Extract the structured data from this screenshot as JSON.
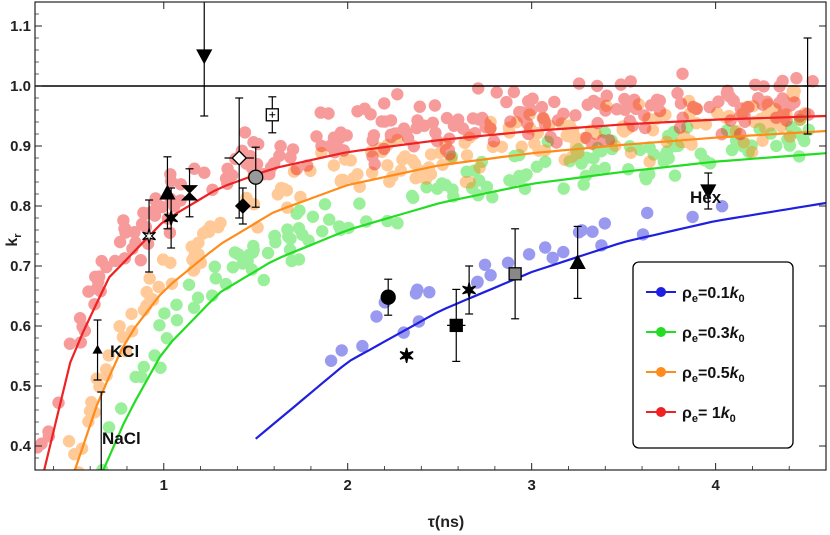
{
  "chart_data": {
    "type": "scatter",
    "title": "",
    "xlabel": "τ(ns)",
    "ylabel": "kr",
    "xlim": [
      0.3,
      4.6
    ],
    "ylim": [
      0.36,
      1.14
    ],
    "xticks": [
      1,
      2,
      3,
      4
    ],
    "yticks": [
      0.4,
      0.5,
      0.6,
      0.7,
      0.8,
      0.9,
      1.0,
      1.1
    ],
    "reference_line": {
      "y": 1.0
    },
    "annotations": [
      {
        "text": "KCl",
        "x": 0.5,
        "y": 0.545
      },
      {
        "text": "NaCl",
        "x": 0.52,
        "y": 0.38
      },
      {
        "text": "Hex",
        "x": 4.0,
        "y": 0.815
      }
    ],
    "series": [
      {
        "name": "ρe=0.1k0",
        "label": "ρ",
        "sub": "e",
        "eq": "=0.1",
        "k": "k",
        "k_sub": "0",
        "color": "#1f1fdf",
        "k0": 0.1,
        "cloud": {
          "xmin": 1.7,
          "xmax": 4.1,
          "count": 28,
          "spread": 0.06
        }
      },
      {
        "name": "ρe=0.3k0",
        "label": "ρ",
        "sub": "e",
        "eq": "=0.3",
        "k": "k",
        "k_sub": "0",
        "color": "#22dd22",
        "k0": 0.3,
        "cloud": {
          "xmin": 0.6,
          "xmax": 4.55,
          "count": 150,
          "spread": 0.06
        }
      },
      {
        "name": "ρe=0.5k0",
        "label": "ρ",
        "sub": "e",
        "eq": "=0.5",
        "k": "k",
        "k_sub": "0",
        "color": "#ff8c1a",
        "k0": 0.5,
        "cloud": {
          "xmin": 0.45,
          "xmax": 4.55,
          "count": 180,
          "spread": 0.07
        }
      },
      {
        "name": "ρe= 1k0",
        "label": "ρ",
        "sub": "e",
        "eq": "= 1",
        "k": "k",
        "k_sub": "0",
        "color": "#ee2222",
        "k0": 1.0,
        "cloud": {
          "xmin": 0.3,
          "xmax": 4.55,
          "count": 230,
          "spread": 0.07
        }
      }
    ],
    "curves": [
      {
        "series": "ρe=0.1k0",
        "x_start": 1.5,
        "x_end": 4.6,
        "points": [
          [
            1.5,
            0.412
          ],
          [
            2.0,
            0.54
          ],
          [
            2.5,
            0.625
          ],
          [
            3.0,
            0.69
          ],
          [
            3.5,
            0.74
          ],
          [
            4.0,
            0.775
          ],
          [
            4.6,
            0.805
          ]
        ]
      },
      {
        "series": "ρe=0.3k0",
        "x_start": 0.65,
        "x_end": 4.6,
        "points": [
          [
            0.65,
            0.345
          ],
          [
            0.8,
            0.45
          ],
          [
            1.0,
            0.56
          ],
          [
            1.3,
            0.655
          ],
          [
            1.6,
            0.71
          ],
          [
            2.0,
            0.76
          ],
          [
            2.5,
            0.805
          ],
          [
            3.0,
            0.837
          ],
          [
            3.5,
            0.857
          ],
          [
            4.0,
            0.874
          ],
          [
            4.6,
            0.888
          ]
        ]
      },
      {
        "series": "ρe=0.5k0",
        "x_start": 0.5,
        "x_end": 4.6,
        "points": [
          [
            0.5,
            0.345
          ],
          [
            0.65,
            0.48
          ],
          [
            0.8,
            0.58
          ],
          [
            1.0,
            0.66
          ],
          [
            1.3,
            0.735
          ],
          [
            1.6,
            0.79
          ],
          [
            2.0,
            0.835
          ],
          [
            2.5,
            0.868
          ],
          [
            3.0,
            0.888
          ],
          [
            3.5,
            0.902
          ],
          [
            4.0,
            0.914
          ],
          [
            4.6,
            0.925
          ]
        ]
      },
      {
        "series": "ρe= 1k0",
        "x_start": 0.35,
        "x_end": 4.6,
        "points": [
          [
            0.35,
            0.36
          ],
          [
            0.5,
            0.55
          ],
          [
            0.7,
            0.68
          ],
          [
            1.0,
            0.775
          ],
          [
            1.3,
            0.83
          ],
          [
            1.6,
            0.863
          ],
          [
            2.0,
            0.89
          ],
          [
            2.5,
            0.91
          ],
          [
            3.0,
            0.925
          ],
          [
            3.5,
            0.936
          ],
          [
            4.0,
            0.944
          ],
          [
            4.6,
            0.95
          ]
        ]
      }
    ],
    "markers": [
      {
        "shape": "triangle-down",
        "x": 1.22,
        "y": 1.05,
        "err": 0.1,
        "fill": "#000"
      },
      {
        "shape": "diamond-open",
        "x": 1.41,
        "y": 0.88,
        "err": 0.1,
        "xerr": 0.08,
        "fill": "none"
      },
      {
        "shape": "circle",
        "x": 1.5,
        "y": 0.848,
        "err": 0.05,
        "fill": "#999"
      },
      {
        "shape": "diamond",
        "x": 1.43,
        "y": 0.8,
        "err": 0.03,
        "fill": "#000"
      },
      {
        "shape": "square-open-x",
        "x": 1.59,
        "y": 0.952,
        "err": 0.03,
        "fill": "none"
      },
      {
        "shape": "triangle",
        "x": 1.02,
        "y": 0.822,
        "err": 0.06,
        "fill": "#000"
      },
      {
        "shape": "hourglass",
        "x": 1.14,
        "y": 0.822,
        "err": 0.04,
        "fill": "#000"
      },
      {
        "shape": "star",
        "x": 1.04,
        "y": 0.78,
        "err": 0.05,
        "fill": "#000"
      },
      {
        "shape": "star-open",
        "x": 0.92,
        "y": 0.75,
        "err": 0.06,
        "fill": "none"
      },
      {
        "shape": "triangle-small",
        "x": 0.64,
        "y": 0.56,
        "err": 0.05,
        "fill": "#000"
      },
      {
        "shape": "tick",
        "x": 0.66,
        "y": 0.36,
        "err": 0.13,
        "fill": "#000"
      },
      {
        "shape": "circle",
        "x": 2.22,
        "y": 0.648,
        "err": 0.03,
        "fill": "#000"
      },
      {
        "shape": "square",
        "x": 2.59,
        "y": 0.601,
        "err": 0.06,
        "xerr": 0.05,
        "fill": "#000"
      },
      {
        "shape": "star",
        "x": 2.32,
        "y": 0.551,
        "err": 0,
        "fill": "#000"
      },
      {
        "shape": "star",
        "x": 2.66,
        "y": 0.66,
        "err": 0.04,
        "fill": "#000"
      },
      {
        "shape": "square",
        "x": 2.91,
        "y": 0.687,
        "err": 0.075,
        "fill": "#888"
      },
      {
        "shape": "triangle",
        "x": 3.25,
        "y": 0.706,
        "err": 0.06,
        "fill": "#000"
      },
      {
        "shape": "triangle-down",
        "x": 3.96,
        "y": 0.825,
        "err": 0.03,
        "fill": "#000"
      },
      {
        "shape": "tick",
        "x": 4.5,
        "y": 1.0,
        "err": 0.08,
        "fill": "#000"
      }
    ]
  }
}
